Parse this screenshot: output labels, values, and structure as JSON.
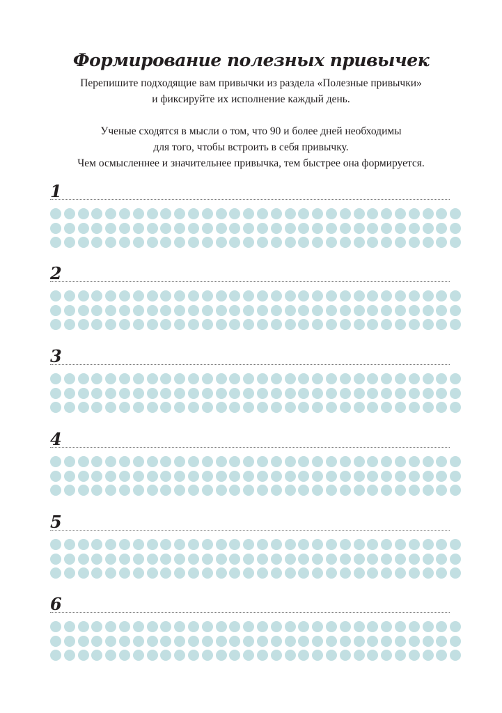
{
  "title": "Формирование полезных привычек",
  "intro": {
    "line1": "Перепишите подходящие вам привычки из раздела «Полезные привычки»",
    "line2": "и фиксируйте их исполнение каждый день.",
    "line3": "Ученые сходятся в мысли о том, что 90 и более дней необходимы",
    "line4": "для того, чтобы встроить в себя привычку.",
    "line5": "Чем осмысленнее и значительнее привычка, тем быстрее она формируется."
  },
  "habits": [
    {
      "number": "1",
      "text": ""
    },
    {
      "number": "2",
      "text": ""
    },
    {
      "number": "3",
      "text": ""
    },
    {
      "number": "4",
      "text": ""
    },
    {
      "number": "5",
      "text": ""
    },
    {
      "number": "6",
      "text": ""
    }
  ],
  "days_per_habit": 90,
  "dot_color": "#c2dfe2"
}
